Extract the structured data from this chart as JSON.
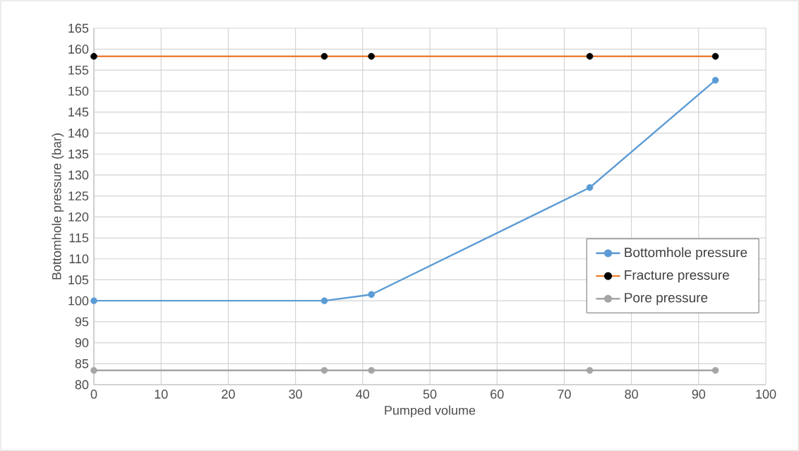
{
  "chart_data": {
    "type": "line",
    "xlabel": "Pumped volume",
    "ylabel": "Bottomhole pressure (bar)",
    "xlim": [
      0,
      100
    ],
    "xticks": [
      0,
      10,
      20,
      30,
      40,
      50,
      60,
      70,
      80,
      90,
      100
    ],
    "ylim": [
      80,
      165
    ],
    "yticks": [
      80,
      85,
      90,
      95,
      100,
      105,
      110,
      115,
      120,
      125,
      130,
      135,
      140,
      145,
      150,
      155,
      160,
      165
    ],
    "x": [
      0,
      34.3,
      41.3,
      73.8,
      92.5
    ],
    "series": [
      {
        "name": "Bottomhole pressure",
        "color": "#5b9bd5",
        "values": [
          100,
          100,
          101.5,
          127,
          152.6
        ]
      },
      {
        "name": "Fracture pressure",
        "color": "#ed7d31",
        "colors": [
          "#000000",
          "#000000",
          "#000000",
          "#000000",
          "#000000"
        ],
        "values": [
          158.3,
          158.3,
          158.3,
          158.3,
          158.3
        ]
      },
      {
        "name": "Pore pressure",
        "color": "#a5a5a5",
        "values": [
          83.4,
          83.4,
          83.4,
          83.4,
          83.4
        ]
      }
    ],
    "grid": true,
    "legend": "right",
    "marker": "circle",
    "line_style": "solid"
  }
}
